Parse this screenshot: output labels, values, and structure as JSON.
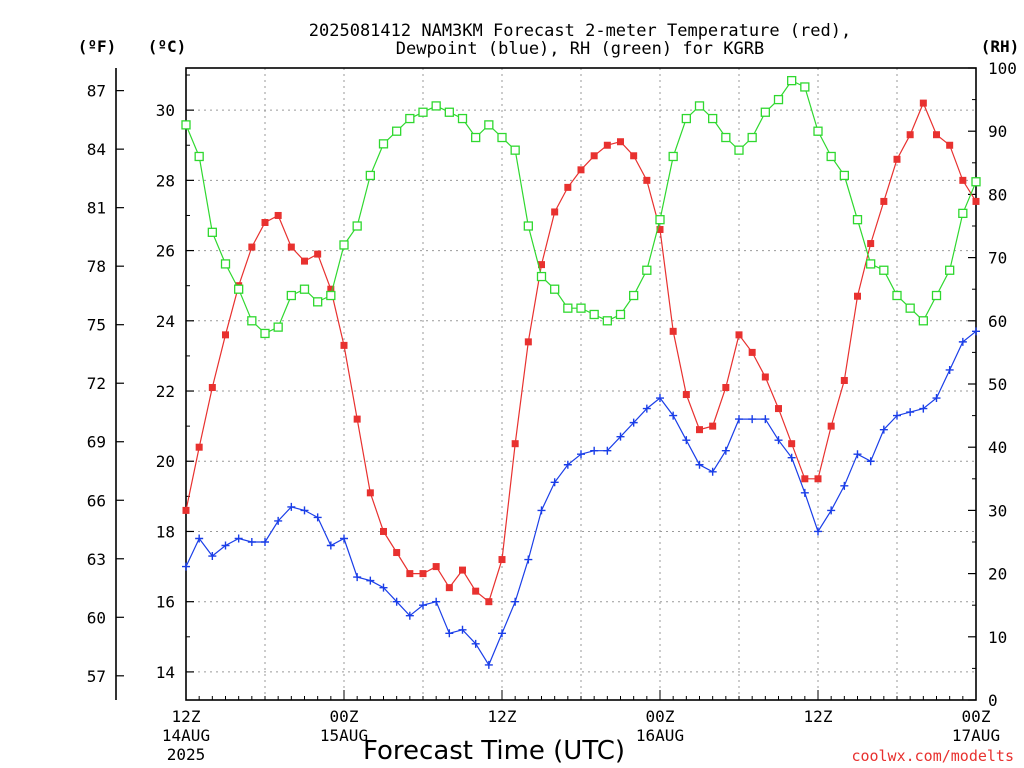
{
  "chart_data": {
    "type": "line",
    "title_line1": "2025081412 NAM3KM Forecast 2-meter Temperature (red),",
    "title_line2": "Dewpoint (blue), RH (green) for KGRB",
    "xlabel": "Forecast Time (UTC)",
    "credit": "coolwx.com/modelts",
    "unit_left_f": "(ºF)",
    "unit_left_c": "(ºC)",
    "unit_right": "(RH)",
    "x_range_hours": [
      0,
      60
    ],
    "y_celsius_range": [
      13.2,
      31.2
    ],
    "y_rh_range": [
      0,
      100
    ],
    "grid": true,
    "x_ticks": [
      {
        "hour": 0,
        "line1": "12Z",
        "line2": "14AUG",
        "line3": "2025"
      },
      {
        "hour": 12,
        "line1": "00Z",
        "line2": "15AUG",
        "line3": ""
      },
      {
        "hour": 24,
        "line1": "12Z",
        "line2": "",
        "line3": ""
      },
      {
        "hour": 36,
        "line1": "00Z",
        "line2": "16AUG",
        "line3": ""
      },
      {
        "hour": 48,
        "line1": "12Z",
        "line2": "",
        "line3": ""
      },
      {
        "hour": 60,
        "line1": "00Z",
        "line2": "17AUG",
        "line3": ""
      }
    ],
    "y_ticks_c": [
      14,
      16,
      18,
      20,
      22,
      24,
      26,
      28,
      30
    ],
    "y_ticks_f": [
      57,
      60,
      63,
      66,
      69,
      72,
      75,
      78,
      81,
      84,
      87
    ],
    "y_ticks_rh": [
      0,
      10,
      20,
      30,
      40,
      50,
      60,
      70,
      80,
      90,
      100
    ],
    "series": [
      {
        "name": "Temperature",
        "color": "#e8312f",
        "marker": "filled-square",
        "unit": "C",
        "hours": [
          0,
          1,
          2,
          3,
          4,
          5,
          6,
          7,
          8,
          9,
          10,
          11,
          12,
          13,
          14,
          15,
          16,
          17,
          18,
          19,
          20,
          21,
          22,
          23,
          24,
          25,
          26,
          27,
          28,
          29,
          30,
          31,
          32,
          33,
          34,
          35,
          36,
          37,
          38,
          39,
          40,
          41,
          42,
          43,
          44,
          45,
          46,
          47,
          48,
          49,
          50,
          51,
          52,
          53,
          54,
          55,
          56,
          57,
          58,
          59,
          60
        ],
        "values": [
          18.6,
          20.4,
          22.1,
          23.6,
          25.0,
          26.1,
          26.8,
          27.0,
          26.1,
          25.7,
          25.9,
          24.9,
          23.3,
          21.2,
          19.1,
          18.0,
          17.4,
          16.8,
          16.8,
          17.0,
          16.4,
          16.9,
          16.3,
          16.0,
          17.2,
          20.5,
          23.4,
          25.6,
          27.1,
          27.8,
          28.3,
          28.7,
          29.0,
          29.1,
          28.7,
          28.0,
          26.6,
          23.7,
          21.9,
          20.9,
          21.0,
          22.1,
          23.6,
          23.1,
          22.4,
          21.5,
          20.5,
          19.5,
          19.5,
          21.0,
          22.3,
          24.7,
          26.2,
          27.4,
          28.6,
          29.3,
          30.2,
          29.3,
          29.0,
          28.0,
          27.4
        ]
      },
      {
        "name": "Dewpoint",
        "color": "#1a3ee8",
        "marker": "plus",
        "unit": "C",
        "hours": [
          0,
          1,
          2,
          3,
          4,
          5,
          6,
          7,
          8,
          9,
          10,
          11,
          12,
          13,
          14,
          15,
          16,
          17,
          18,
          19,
          20,
          21,
          22,
          23,
          24,
          25,
          26,
          27,
          28,
          29,
          30,
          31,
          32,
          33,
          34,
          35,
          36,
          37,
          38,
          39,
          40,
          41,
          42,
          43,
          44,
          45,
          46,
          47,
          48,
          49,
          50,
          51,
          52,
          53,
          54,
          55,
          56,
          57,
          58,
          59,
          60
        ],
        "values": [
          17.0,
          17.8,
          17.3,
          17.6,
          17.8,
          17.7,
          17.7,
          18.3,
          18.7,
          18.6,
          18.4,
          17.6,
          17.8,
          16.7,
          16.6,
          16.4,
          16.0,
          15.6,
          15.9,
          16.0,
          15.1,
          15.2,
          14.8,
          14.2,
          15.1,
          16.0,
          17.2,
          18.6,
          19.4,
          19.9,
          20.2,
          20.3,
          20.3,
          20.7,
          21.1,
          21.5,
          21.8,
          21.3,
          20.6,
          19.9,
          19.7,
          20.3,
          21.2,
          21.2,
          21.2,
          20.6,
          20.1,
          19.1,
          18.0,
          18.6,
          19.3,
          20.2,
          20.0,
          20.9,
          21.3,
          21.4,
          21.5,
          21.8,
          22.6,
          23.4,
          23.7
        ]
      },
      {
        "name": "RH",
        "color": "#2fd82f",
        "marker": "open-square",
        "unit": "%",
        "hours": [
          0,
          1,
          2,
          3,
          4,
          5,
          6,
          7,
          8,
          9,
          10,
          11,
          12,
          13,
          14,
          15,
          16,
          17,
          18,
          19,
          20,
          21,
          22,
          23,
          24,
          25,
          26,
          27,
          28,
          29,
          30,
          31,
          32,
          33,
          34,
          35,
          36,
          37,
          38,
          39,
          40,
          41,
          42,
          43,
          44,
          45,
          46,
          47,
          48,
          49,
          50,
          51,
          52,
          53,
          54,
          55,
          56,
          57,
          58,
          59,
          60
        ],
        "values": [
          91,
          86,
          74,
          69,
          65,
          60,
          58,
          59,
          64,
          65,
          63,
          64,
          72,
          75,
          83,
          88,
          90,
          92,
          93,
          94,
          93,
          92,
          89,
          91,
          89,
          87,
          75,
          67,
          65,
          62,
          62,
          61,
          60,
          61,
          64,
          68,
          76,
          86,
          92,
          94,
          92,
          89,
          87,
          89,
          93,
          95,
          98,
          97,
          90,
          86,
          83,
          76,
          69,
          68,
          64,
          62,
          60,
          64,
          68,
          77,
          82
        ]
      }
    ]
  }
}
